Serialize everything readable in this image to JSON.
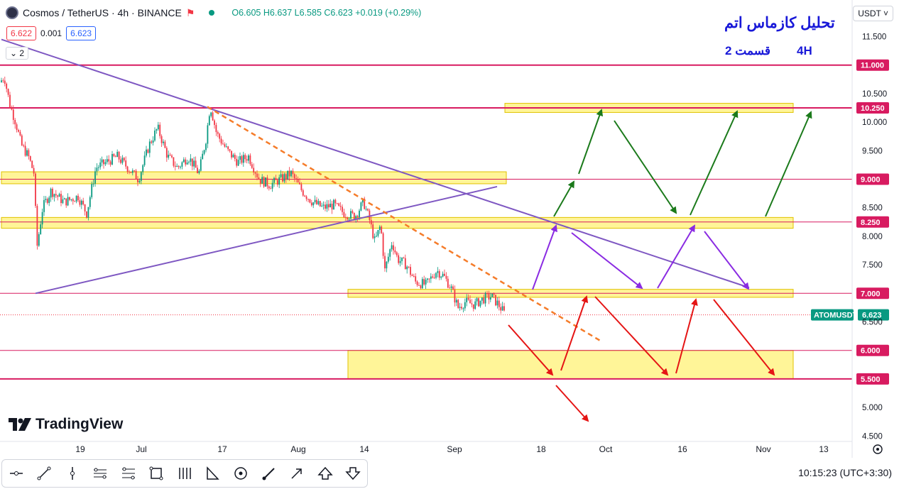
{
  "header": {
    "symbol": "Cosmos / TetherUS · 4h · BINANCE",
    "o": "O6.605",
    "h": "H6.637",
    "l": "L6.585",
    "c": "C6.623",
    "chg": "+0.019 (+0.29%)"
  },
  "boxes": {
    "sell": "6.622",
    "spread": "0.001",
    "buy": "6.623"
  },
  "indicator_count": "2",
  "currency": "USDT ˅",
  "annotation": {
    "title": "تحلیل کازماس اتم",
    "subtitle": "قسمت 2",
    "timeframe": "4H"
  },
  "logo": "TradingView",
  "clock": "10:15:23  (UTC+3:30)",
  "colors": {
    "up": "#089981",
    "down": "#f23645",
    "level": "#d81b60",
    "zone": "#fff176",
    "trend": "#7e57c2",
    "dashed": "#f57c2a",
    "green_arrow": "#1b7a1b",
    "red_arrow": "#e51515",
    "purple_arrow": "#8a2be2"
  },
  "toolbar_icons": [
    "horizontal-line-icon",
    "trend-line-icon",
    "vertical-line-icon",
    "parallel-channel-icon",
    "fib-icon",
    "rectangle-icon",
    "pattern-icon",
    "triangle-pattern-icon",
    "ellipse-icon",
    "brush-icon",
    "arrow-icon",
    "arrow-up-icon",
    "arrow-down-icon"
  ],
  "chart_data": {
    "type": "candlestick",
    "symbol": "ATOMUSDT",
    "last_price": 6.623,
    "ylim": [
      4.5,
      11.5
    ],
    "y_ticks": [
      "11.500",
      "11.000",
      "10.500",
      "10.250",
      "10.000",
      "9.500",
      "9.000",
      "8.500",
      "8.250",
      "8.000",
      "7.500",
      "7.000",
      "6.623",
      "6.500",
      "6.000",
      "5.500",
      "5.000",
      "4.500"
    ],
    "x_ticks": [
      "19",
      "Jul",
      "17",
      "Aug",
      "14",
      "Sep",
      "18",
      "Oct",
      "16",
      "Nov",
      "13"
    ],
    "levels": [
      11.0,
      10.25,
      9.0,
      8.25,
      7.0,
      6.0,
      5.5
    ],
    "level_labels": [
      "11.000",
      "10.250",
      "9.000",
      "8.250",
      "7.000",
      "6.000",
      "5.500"
    ],
    "last_label": "ATOMUSDT",
    "last_value_label": "6.623",
    "zones": [
      {
        "from_date": "Sep 25",
        "to_date": "Nov 6",
        "low": 10.17,
        "high": 10.33
      },
      {
        "from_date": "Jun 9",
        "to_date": "Sep 23",
        "low": 8.92,
        "high": 9.13
      },
      {
        "from_date": "Jun 9",
        "to_date": "Nov 6",
        "low": 8.14,
        "high": 8.33
      },
      {
        "from_date": "Aug 10",
        "to_date": "Nov 6",
        "low": 6.93,
        "high": 7.07
      },
      {
        "from_date": "Aug 10",
        "to_date": "Nov 6",
        "low": 5.5,
        "high": 6.0
      }
    ],
    "price_path": [
      [
        0,
        10.7
      ],
      [
        6,
        10.8
      ],
      [
        14,
        10.3
      ],
      [
        22,
        10.0
      ],
      [
        30,
        9.6
      ],
      [
        40,
        9.4
      ],
      [
        48,
        9.1
      ],
      [
        52,
        7.8
      ],
      [
        60,
        8.5
      ],
      [
        72,
        8.8
      ],
      [
        90,
        8.6
      ],
      [
        110,
        8.7
      ],
      [
        122,
        8.4
      ],
      [
        135,
        9.2
      ],
      [
        150,
        9.3
      ],
      [
        165,
        9.4
      ],
      [
        180,
        9.2
      ],
      [
        195,
        9.0
      ],
      [
        210,
        9.6
      ],
      [
        222,
        9.9
      ],
      [
        236,
        9.4
      ],
      [
        250,
        9.2
      ],
      [
        265,
        9.4
      ],
      [
        280,
        9.1
      ],
      [
        290,
        9.7
      ],
      [
        296,
        10.3
      ],
      [
        305,
        9.8
      ],
      [
        320,
        9.5
      ],
      [
        335,
        9.3
      ],
      [
        350,
        9.4
      ],
      [
        365,
        9.0
      ],
      [
        380,
        8.9
      ],
      [
        395,
        9.0
      ],
      [
        410,
        9.1
      ],
      [
        425,
        8.8
      ],
      [
        440,
        8.6
      ],
      [
        455,
        8.5
      ],
      [
        470,
        8.55
      ],
      [
        485,
        8.4
      ],
      [
        500,
        8.35
      ],
      [
        512,
        8.6
      ],
      [
        520,
        8.3
      ],
      [
        528,
        7.9
      ],
      [
        536,
        8.2
      ],
      [
        542,
        7.4
      ],
      [
        552,
        7.9
      ],
      [
        560,
        7.6
      ],
      [
        572,
        7.5
      ],
      [
        585,
        7.2
      ],
      [
        600,
        7.15
      ],
      [
        615,
        7.4
      ],
      [
        625,
        7.3
      ],
      [
        635,
        7.1
      ],
      [
        645,
        6.75
      ],
      [
        655,
        6.85
      ],
      [
        668,
        6.8
      ],
      [
        680,
        6.9
      ],
      [
        692,
        6.95
      ],
      [
        702,
        6.8
      ],
      [
        712,
        6.62
      ]
    ],
    "trend_lines": [
      {
        "from_date": "Jun 1",
        "from_price": 11.45,
        "to_date": "Oct 31",
        "to_price": 7.1
      },
      {
        "from_date": "Jun 19",
        "from_price": 7.0,
        "to_date": "Sep 22",
        "to_price": 8.87
      }
    ],
    "dashed_trend": {
      "from_date": "Jul 14",
      "from_price": 10.27,
      "to_date": "Sep 30",
      "to_price": 6.15
    },
    "forecast_arrows": {
      "green": [
        [
          [
            780,
            305
          ],
          [
            808,
            256
          ]
        ],
        [
          [
            815,
            245
          ],
          [
            847,
            155
          ]
        ],
        [
          [
            865,
            170
          ],
          [
            952,
            300
          ]
        ],
        [
          [
            972,
            303
          ],
          [
            1038,
            157
          ]
        ],
        [
          [
            1078,
            305
          ],
          [
            1142,
            158
          ]
        ]
      ],
      "purple": [
        [
          [
            750,
            408
          ],
          [
            783,
            318
          ]
        ],
        [
          [
            805,
            328
          ],
          [
            904,
            406
          ]
        ],
        [
          [
            926,
            406
          ],
          [
            978,
            318
          ]
        ],
        [
          [
            992,
            326
          ],
          [
            1054,
            407
          ]
        ]
      ],
      "red": [
        [
          [
            716,
            458
          ],
          [
            778,
            528
          ]
        ],
        [
          [
            790,
            522
          ],
          [
            826,
            418
          ]
        ],
        [
          [
            838,
            418
          ],
          [
            940,
            528
          ]
        ],
        [
          [
            952,
            526
          ],
          [
            980,
            422
          ]
        ],
        [
          [
            1005,
            422
          ],
          [
            1090,
            528
          ]
        ],
        [
          [
            783,
            543
          ],
          [
            828,
            593
          ]
        ]
      ]
    }
  }
}
